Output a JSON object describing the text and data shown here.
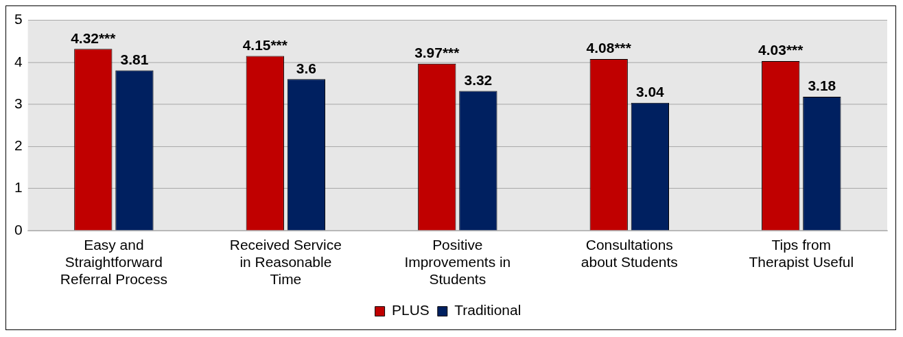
{
  "chart_data": {
    "type": "bar",
    "categories": [
      "Easy and Straightforward Referral Process",
      "Received Service in Reasonable Time",
      "Positive Improvements in Students",
      "Consultations about Students",
      "Tips from Therapist Useful"
    ],
    "series": [
      {
        "name": "PLUS",
        "color": "#c00000",
        "values": [
          4.32,
          4.15,
          3.97,
          4.08,
          4.03
        ],
        "value_labels": [
          "4.32***",
          "4.15***",
          "3.97***",
          "4.08***",
          "4.03***"
        ]
      },
      {
        "name": "Traditional",
        "color": "#002060",
        "values": [
          3.81,
          3.6,
          3.32,
          3.04,
          3.18
        ],
        "value_labels": [
          "3.81",
          "3.6",
          "3.32",
          "3.04",
          "3.18"
        ]
      }
    ],
    "ylim": [
      0,
      5
    ],
    "yticks": [
      0,
      1,
      2,
      3,
      4,
      5
    ],
    "grid": "y",
    "legend": "bottom"
  }
}
